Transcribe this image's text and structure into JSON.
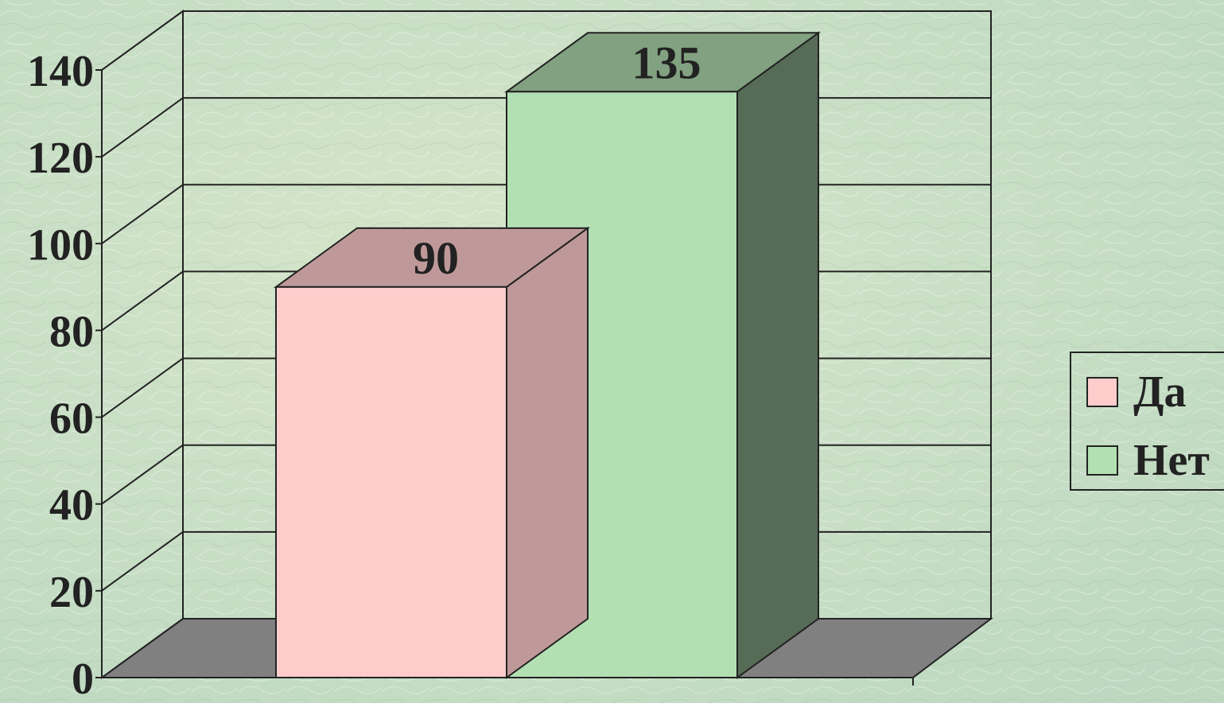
{
  "chart_data": {
    "type": "bar",
    "title": "",
    "xlabel": "",
    "ylabel": "",
    "categories": [
      ""
    ],
    "ylim": [
      0,
      140
    ],
    "yticks": [
      0,
      20,
      40,
      60,
      80,
      100,
      120,
      140
    ],
    "grid": true,
    "legend_position": "right",
    "three_d": true,
    "series": [
      {
        "name": "Да",
        "values": [
          90
        ],
        "color": "#ffcccc",
        "data_label": "90"
      },
      {
        "name": "Нет",
        "values": [
          135
        ],
        "color": "#b3e0b3",
        "data_label": "135"
      }
    ]
  },
  "colors": {
    "background": "#cfe1c8",
    "floor": "#808080",
    "grid_line": "#222222"
  }
}
